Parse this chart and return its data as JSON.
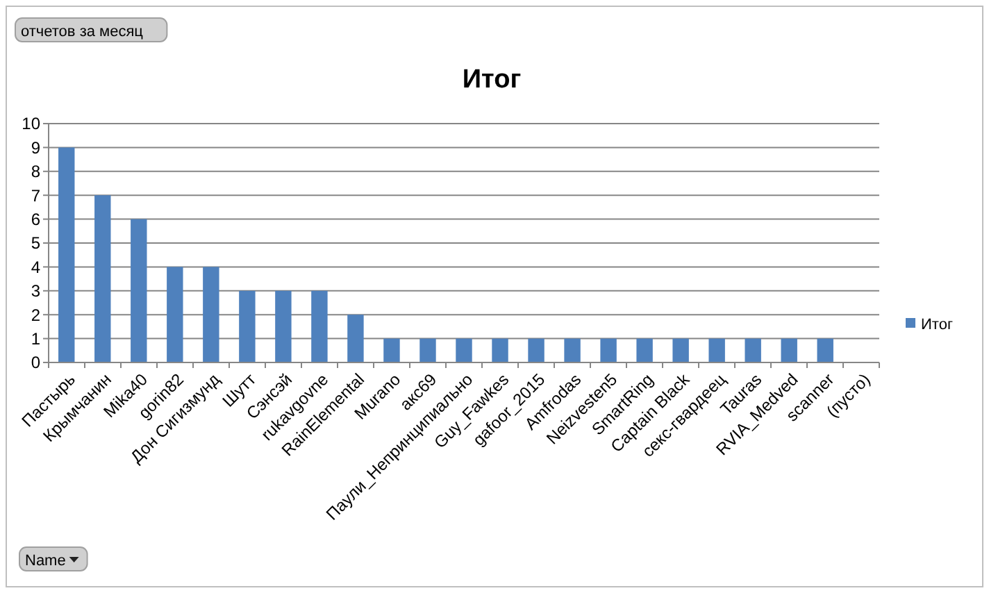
{
  "chart_data": {
    "type": "bar",
    "title": "Итог",
    "categories": [
      "Пастырь",
      "Крымчанин",
      "Mika40",
      "gorin82",
      "Дон Сигизмунд",
      "Шутт",
      "Сэнсэй",
      "rukavgovne",
      "RainElemental",
      "Murano",
      "акс69",
      "Паули_Непринципиально",
      "Guy_Fawkes",
      "gafoor_2015",
      "Amfrodas",
      "Neizvesten5",
      "SmartRing",
      "Captain Black",
      "секс-гвардеец",
      "Tauras",
      "RVIA_Medved",
      "scanner",
      "(пусто)"
    ],
    "series": [
      {
        "name": "Итог",
        "color": "#4f81bd",
        "values": [
          9,
          7,
          6,
          4,
          4,
          3,
          3,
          3,
          2,
          1,
          1,
          1,
          1,
          1,
          1,
          1,
          1,
          1,
          1,
          1,
          1,
          1,
          null
        ]
      }
    ],
    "ylim": [
      0,
      10
    ],
    "yticks": [
      0,
      1,
      2,
      3,
      4,
      5,
      6,
      7,
      8,
      9,
      10
    ],
    "grid": "y",
    "legend": "right",
    "annotations": [
      "отчетов за месяц",
      "Name"
    ]
  }
}
